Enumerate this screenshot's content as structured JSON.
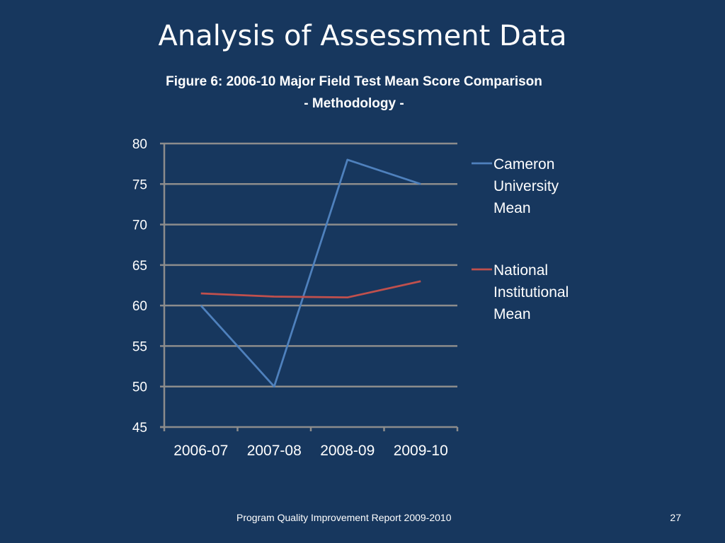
{
  "slide": {
    "title": "Analysis of Assessment Data",
    "figure_title_line1": "Figure 6: 2006-10 Major Field Test Mean Score Comparison",
    "figure_title_line2": "- Methodology -",
    "footer": "Program Quality Improvement Report 2009-2010",
    "page_number": "27",
    "background": "#17375e"
  },
  "chart_data": {
    "type": "line",
    "categories": [
      "2006-07",
      "2007-08",
      "2008-09",
      "2009-10"
    ],
    "series": [
      {
        "name": "Cameron University Mean",
        "legend_lines": [
          "Cameron",
          "University",
          "Mean"
        ],
        "values": [
          60,
          50,
          78,
          75
        ],
        "color": "#4f81bd"
      },
      {
        "name": "National Institutional Mean",
        "legend_lines": [
          "National",
          "Institutional",
          "Mean"
        ],
        "values": [
          61.5,
          61.1,
          61,
          63
        ],
        "color": "#c0504d"
      }
    ],
    "ylim": [
      45,
      80
    ],
    "yticks": [
      45,
      50,
      55,
      60,
      65,
      70,
      75,
      80
    ],
    "grid": true,
    "legend": "right",
    "xlabel": "",
    "ylabel": ""
  }
}
